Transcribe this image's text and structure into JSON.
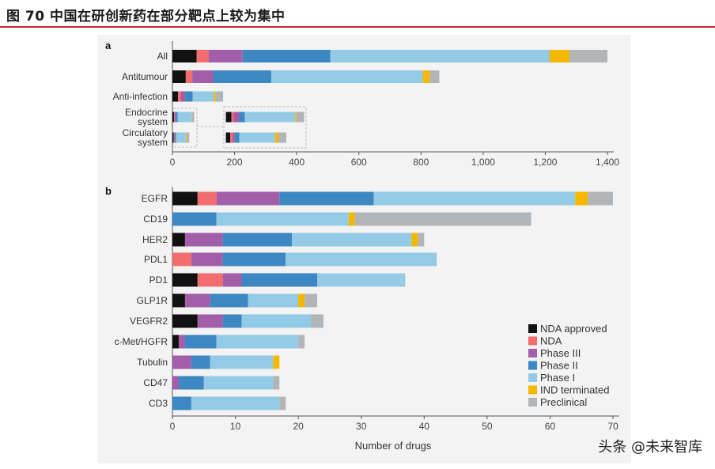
{
  "header": {
    "title": "图 70  中国在研创新药在部分靶点上较为集中"
  },
  "watermark": "头条 @未来智库",
  "legend": {
    "position": "bottom-right",
    "items": [
      {
        "name": "NDA approved",
        "color": "#111111"
      },
      {
        "name": "NDA",
        "color": "#f26d6d"
      },
      {
        "name": "Phase III",
        "color": "#a25ea8"
      },
      {
        "name": "Phase II",
        "color": "#3d87c2"
      },
      {
        "name": "Phase I",
        "color": "#93cbe6"
      },
      {
        "name": "IND terminated",
        "color": "#f5b800"
      },
      {
        "name": "Preclinical",
        "color": "#b1b5b8"
      }
    ]
  },
  "chart_data": [
    {
      "type": "bar",
      "orientation": "horizontal",
      "stacked": true,
      "panel_label": "a",
      "categories": [
        "All",
        "Antitumour",
        "Anti-infection",
        "Endocrine system",
        "Circulatory system"
      ],
      "series": [
        {
          "name": "NDA approved",
          "values": [
            78,
            43,
            18,
            5,
            4
          ]
        },
        {
          "name": "NDA",
          "values": [
            39,
            21,
            10,
            2,
            2
          ]
        },
        {
          "name": "Phase III",
          "values": [
            109,
            67,
            13,
            5,
            2
          ]
        },
        {
          "name": "Phase II",
          "values": [
            282,
            187,
            24,
            5,
            4
          ]
        },
        {
          "name": "Phase I",
          "values": [
            706,
            488,
            68,
            45,
            32
          ]
        },
        {
          "name": "IND terminated",
          "values": [
            64,
            22,
            6,
            1,
            3
          ]
        },
        {
          "name": "Preclinical",
          "values": [
            122,
            31,
            24,
            7,
            7
          ]
        }
      ],
      "xlim": [
        0,
        1400
      ],
      "xticks": [
        "0",
        "200",
        "400",
        "600",
        "800",
        "1,000",
        "1,200",
        "1,400"
      ],
      "xlabel": "",
      "grid": false,
      "inset": {
        "categories": [
          "Endocrine system",
          "Circulatory system"
        ],
        "note": "magnified"
      }
    },
    {
      "type": "bar",
      "orientation": "horizontal",
      "stacked": true,
      "panel_label": "b",
      "categories": [
        "EGFR",
        "CD19",
        "HER2",
        "PDL1",
        "PD1",
        "GLP1R",
        "VEGFR2",
        "c-Met/HGFR",
        "Tubulin",
        "CD47",
        "CD3"
      ],
      "series": [
        {
          "name": "NDA approved",
          "values": [
            4,
            0,
            2,
            0,
            4,
            2,
            4,
            1,
            0,
            0,
            0
          ]
        },
        {
          "name": "NDA",
          "values": [
            3,
            0,
            0,
            3,
            4,
            0,
            0,
            0,
            0,
            0,
            0
          ]
        },
        {
          "name": "Phase III",
          "values": [
            10,
            0,
            6,
            5,
            3,
            4,
            4,
            1,
            3,
            1,
            0
          ]
        },
        {
          "name": "Phase II",
          "values": [
            15,
            7,
            11,
            10,
            12,
            6,
            3,
            5,
            3,
            4,
            3
          ]
        },
        {
          "name": "Phase I",
          "values": [
            32,
            21,
            19,
            24,
            14,
            8,
            11,
            13,
            10,
            11,
            14
          ]
        },
        {
          "name": "IND terminated",
          "values": [
            2,
            1,
            1,
            0,
            0,
            1,
            0,
            0,
            1,
            0,
            0
          ]
        },
        {
          "name": "Preclinical",
          "values": [
            4,
            28,
            1,
            0,
            0,
            2,
            2,
            1,
            0,
            1,
            1
          ]
        }
      ],
      "xlim": [
        0,
        70
      ],
      "xticks": [
        "0",
        "10",
        "20",
        "30",
        "40",
        "50",
        "60",
        "70"
      ],
      "xlabel": "Number of drugs",
      "grid": false
    }
  ]
}
